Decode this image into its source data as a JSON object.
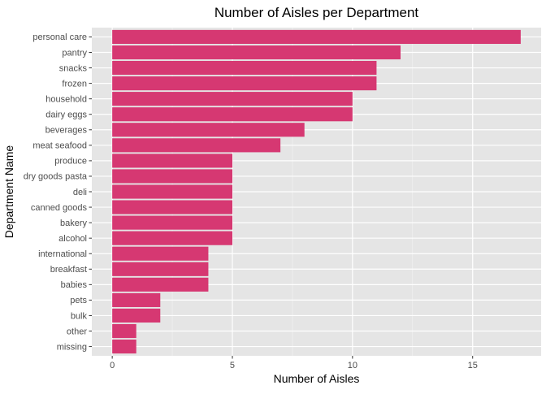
{
  "chart_data": {
    "type": "bar",
    "orientation": "horizontal",
    "title": "Number of Aisles per Department",
    "xlabel": "Number of Aisles",
    "ylabel": "Department Name",
    "categories": [
      "personal care",
      "pantry",
      "snacks",
      "frozen",
      "household",
      "dairy eggs",
      "beverages",
      "meat seafood",
      "produce",
      "dry goods pasta",
      "deli",
      "canned goods",
      "bakery",
      "alcohol",
      "international",
      "breakfast",
      "babies",
      "pets",
      "bulk",
      "other",
      "missing"
    ],
    "values": [
      17,
      12,
      11,
      11,
      10,
      10,
      8,
      7,
      5,
      5,
      5,
      5,
      5,
      5,
      4,
      4,
      4,
      2,
      2,
      1,
      1
    ],
    "xlim": [
      -0.85,
      17.85
    ],
    "xticks": [
      0,
      5,
      10,
      15
    ],
    "xtick_labels": [
      "0",
      "5",
      "10",
      "15"
    ],
    "grid": true,
    "legend": "none",
    "colors": {
      "bar": "#d63872",
      "panel_background": "#e5e5e5",
      "grid_major": "#ffffff",
      "grid_minor": "#f2f2f2"
    }
  }
}
